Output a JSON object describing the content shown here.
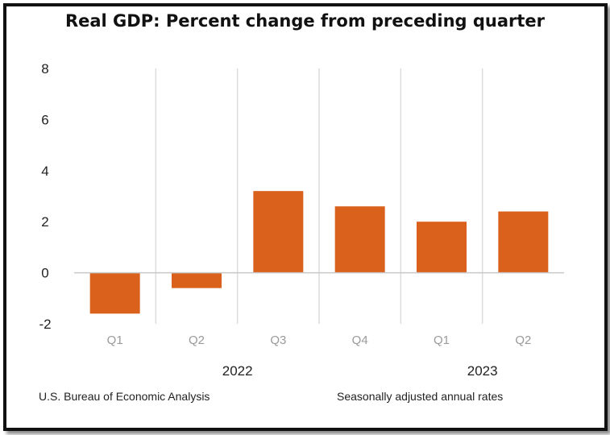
{
  "chart_data": {
    "type": "bar",
    "title": "Real GDP:  Percent change from preceding quarter",
    "categories": [
      "Q1",
      "Q2",
      "Q3",
      "Q4",
      "Q1",
      "Q2"
    ],
    "groups": [
      {
        "label": "2022",
        "categories": [
          "Q1",
          "Q2",
          "Q3",
          "Q4"
        ]
      },
      {
        "label": "2023",
        "categories": [
          "Q1",
          "Q2"
        ]
      }
    ],
    "series": [
      {
        "values": [
          -1.6,
          -0.6,
          3.2,
          2.6,
          2.0,
          2.4
        ]
      }
    ],
    "ylim": [
      -2,
      8
    ],
    "yticks": [
      "8",
      "6",
      "4",
      "2",
      "0",
      "-2"
    ],
    "bar_color": "#d9611c",
    "grid": "vertical separators",
    "xlabel": "",
    "ylabel": ""
  },
  "footer": {
    "source": "U.S. Bureau of Economic Analysis",
    "note": "Seasonally adjusted annual rates"
  }
}
